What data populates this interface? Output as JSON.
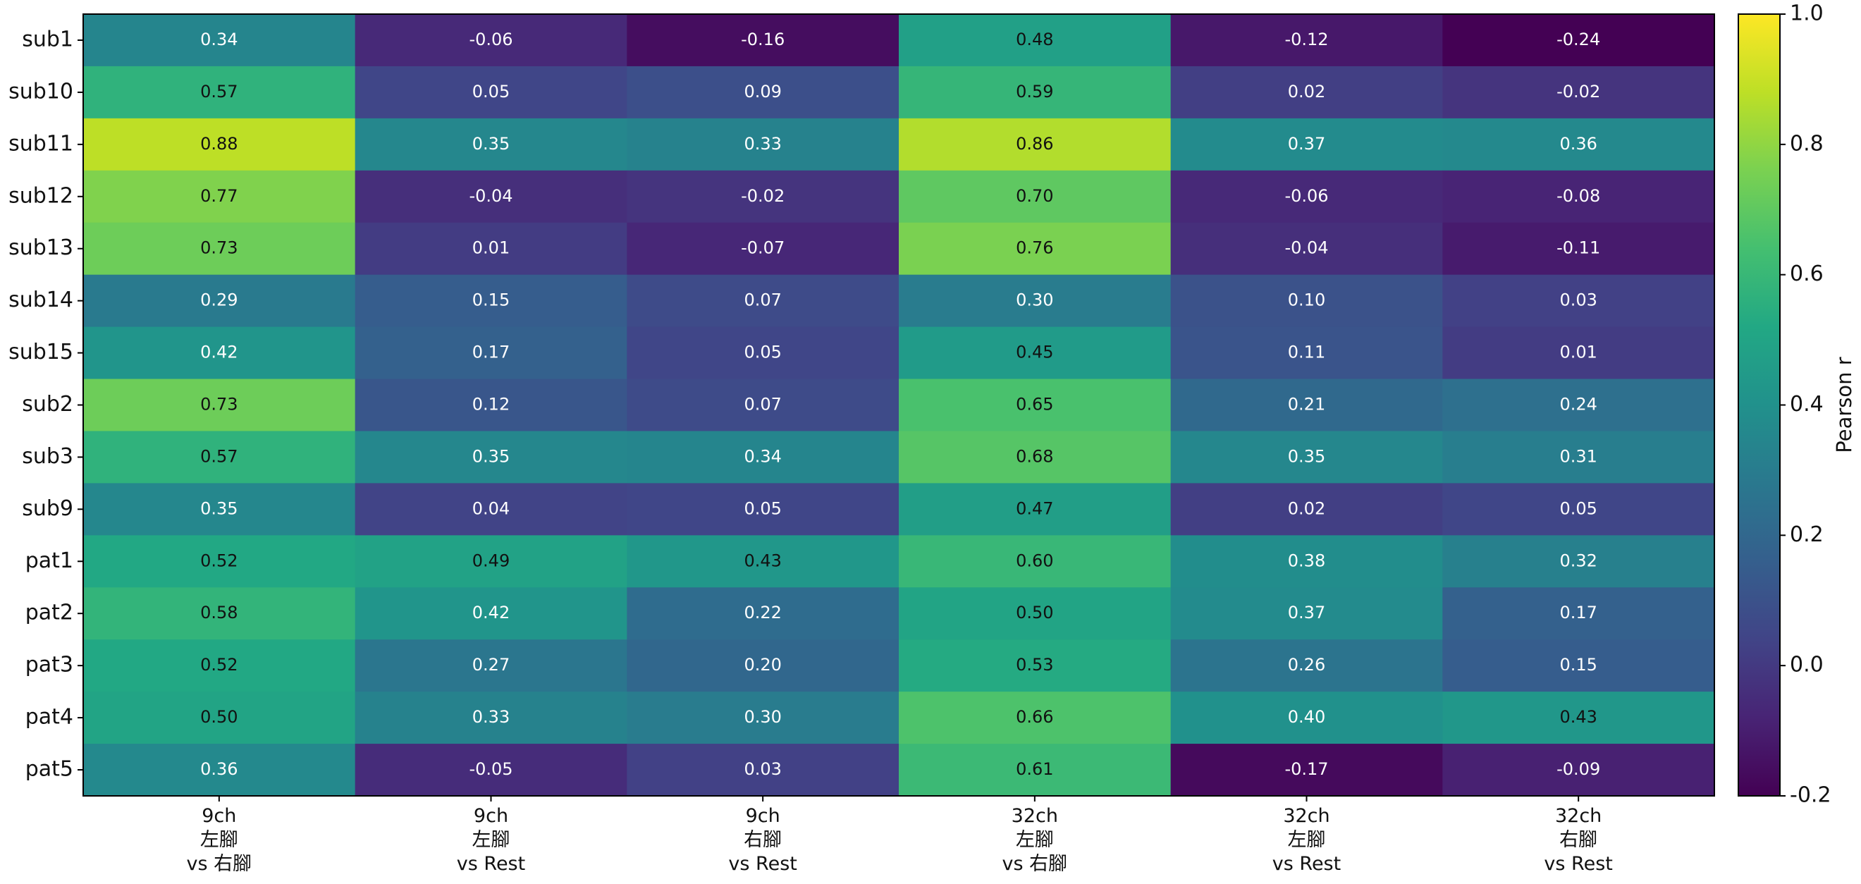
{
  "chart_data": {
    "type": "heatmap",
    "rows": [
      "sub1",
      "sub10",
      "sub11",
      "sub12",
      "sub13",
      "sub14",
      "sub15",
      "sub2",
      "sub3",
      "sub9",
      "pat1",
      "pat2",
      "pat3",
      "pat4",
      "pat5"
    ],
    "categories": [
      "9ch\n左腳\nvs 右腳",
      "9ch\n左腳\nvs Rest",
      "9ch\n右腳\nvs Rest",
      "32ch\n左腳\nvs 右腳",
      "32ch\n左腳\nvs Rest",
      "32ch\n右腳\nvs Rest"
    ],
    "values": [
      [
        0.34,
        -0.06,
        -0.16,
        0.48,
        -0.12,
        -0.24
      ],
      [
        0.57,
        0.05,
        0.09,
        0.59,
        0.02,
        -0.02
      ],
      [
        0.88,
        0.35,
        0.33,
        0.86,
        0.37,
        0.36
      ],
      [
        0.77,
        -0.04,
        -0.02,
        0.7,
        -0.06,
        -0.08
      ],
      [
        0.73,
        0.01,
        -0.07,
        0.76,
        -0.04,
        -0.11
      ],
      [
        0.29,
        0.15,
        0.07,
        0.3,
        0.1,
        0.03
      ],
      [
        0.42,
        0.17,
        0.05,
        0.45,
        0.11,
        0.01
      ],
      [
        0.73,
        0.12,
        0.07,
        0.65,
        0.21,
        0.24
      ],
      [
        0.57,
        0.35,
        0.34,
        0.68,
        0.35,
        0.31
      ],
      [
        0.35,
        0.04,
        0.05,
        0.47,
        0.02,
        0.05
      ],
      [
        0.52,
        0.49,
        0.43,
        0.6,
        0.38,
        0.32
      ],
      [
        0.58,
        0.42,
        0.22,
        0.5,
        0.37,
        0.17
      ],
      [
        0.52,
        0.27,
        0.2,
        0.53,
        0.26,
        0.15
      ],
      [
        0.5,
        0.33,
        0.3,
        0.66,
        0.4,
        0.43
      ],
      [
        0.36,
        -0.05,
        0.03,
        0.61,
        -0.17,
        -0.09
      ]
    ],
    "value_labels": [
      [
        "0.34",
        "-0.06",
        "-0.16",
        "0.48",
        "-0.12",
        "-0.24"
      ],
      [
        "0.57",
        "0.05",
        "0.09",
        "0.59",
        "0.02",
        "-0.02"
      ],
      [
        "0.88",
        "0.35",
        "0.33",
        "0.86",
        "0.37",
        "0.36"
      ],
      [
        "0.77",
        "-0.04",
        "-0.02",
        "0.70",
        "-0.06",
        "-0.08"
      ],
      [
        "0.73",
        "0.01",
        "-0.07",
        "0.76",
        "-0.04",
        "-0.11"
      ],
      [
        "0.29",
        "0.15",
        "0.07",
        "0.30",
        "0.10",
        "0.03"
      ],
      [
        "0.42",
        "0.17",
        "0.05",
        "0.45",
        "0.11",
        "0.01"
      ],
      [
        "0.73",
        "0.12",
        "0.07",
        "0.65",
        "0.21",
        "0.24"
      ],
      [
        "0.57",
        "0.35",
        "0.34",
        "0.68",
        "0.35",
        "0.31"
      ],
      [
        "0.35",
        "0.04",
        "0.05",
        "0.47",
        "0.02",
        "0.05"
      ],
      [
        "0.52",
        "0.49",
        "0.43",
        "0.60",
        "0.38",
        "0.32"
      ],
      [
        "0.58",
        "0.42",
        "0.22",
        "0.50",
        "0.37",
        "0.17"
      ],
      [
        "0.52",
        "0.27",
        "0.20",
        "0.53",
        "0.26",
        "0.15"
      ],
      [
        "0.50",
        "0.33",
        "0.30",
        "0.66",
        "0.40",
        "0.43"
      ],
      [
        "0.36",
        "-0.05",
        "0.03",
        "0.61",
        "-0.17",
        "-0.09"
      ]
    ],
    "colormap": "viridis",
    "clim": [
      -0.2,
      1.0
    ],
    "colorbar_ticks": [
      -0.2,
      {
        "value": 0,
        "label": "0.0"
      },
      0.2,
      0.4,
      0.6,
      0.8,
      {
        "value": 1,
        "label": "1.0"
      }
    ],
    "colorbar_label": "Pearson r"
  }
}
